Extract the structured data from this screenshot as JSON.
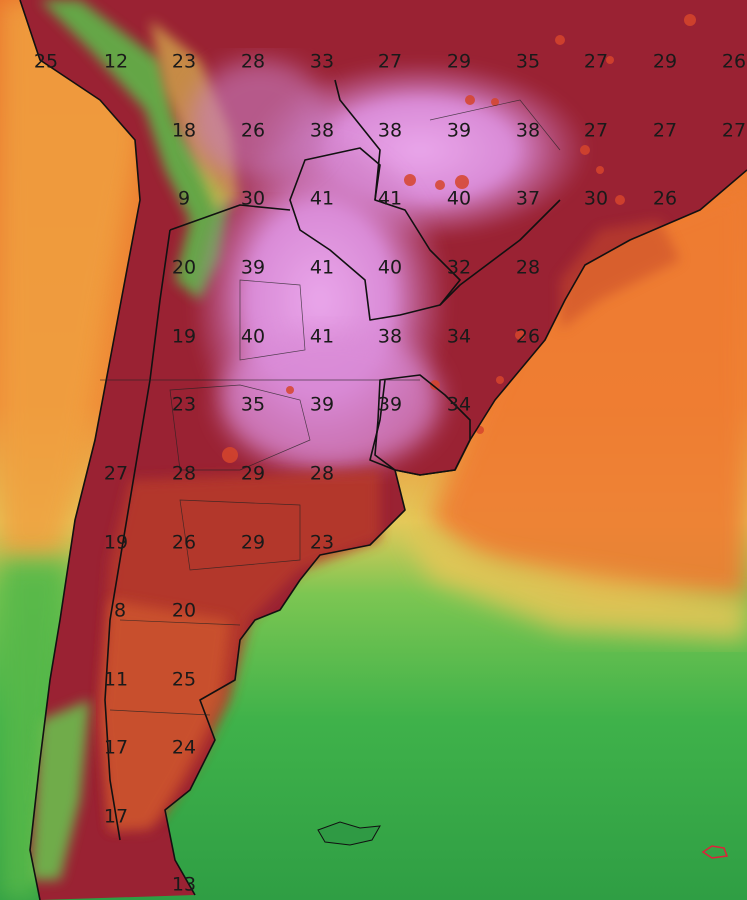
{
  "map": {
    "variable": "temperature",
    "labels": [
      {
        "id": "t01",
        "value": "25"
      },
      {
        "id": "t02",
        "value": "12"
      },
      {
        "id": "t03",
        "value": "23"
      },
      {
        "id": "t04",
        "value": "28"
      },
      {
        "id": "t05",
        "value": "33"
      },
      {
        "id": "t06",
        "value": "27"
      },
      {
        "id": "t07",
        "value": "29"
      },
      {
        "id": "t08",
        "value": "35"
      },
      {
        "id": "t09",
        "value": "27"
      },
      {
        "id": "t10",
        "value": "29"
      },
      {
        "id": "t11",
        "value": "26"
      },
      {
        "id": "t12",
        "value": "18"
      },
      {
        "id": "t13",
        "value": "26"
      },
      {
        "id": "t14",
        "value": "38"
      },
      {
        "id": "t15",
        "value": "38"
      },
      {
        "id": "t16",
        "value": "39"
      },
      {
        "id": "t17",
        "value": "38"
      },
      {
        "id": "t18",
        "value": "27"
      },
      {
        "id": "t19",
        "value": "27"
      },
      {
        "id": "t20",
        "value": "27"
      },
      {
        "id": "t21",
        "value": "9"
      },
      {
        "id": "t22",
        "value": "30"
      },
      {
        "id": "t23",
        "value": "41"
      },
      {
        "id": "t24",
        "value": "41"
      },
      {
        "id": "t25",
        "value": "40"
      },
      {
        "id": "t26",
        "value": "37"
      },
      {
        "id": "t27",
        "value": "30"
      },
      {
        "id": "t28",
        "value": "26"
      },
      {
        "id": "t29",
        "value": "20"
      },
      {
        "id": "t30",
        "value": "39"
      },
      {
        "id": "t31",
        "value": "41"
      },
      {
        "id": "t32",
        "value": "40"
      },
      {
        "id": "t33",
        "value": "32"
      },
      {
        "id": "t34",
        "value": "28"
      },
      {
        "id": "t35",
        "value": "19"
      },
      {
        "id": "t36",
        "value": "40"
      },
      {
        "id": "t37",
        "value": "41"
      },
      {
        "id": "t38",
        "value": "38"
      },
      {
        "id": "t39",
        "value": "34"
      },
      {
        "id": "t40",
        "value": "26"
      },
      {
        "id": "t41",
        "value": "23"
      },
      {
        "id": "t42",
        "value": "35"
      },
      {
        "id": "t43",
        "value": "39"
      },
      {
        "id": "t44",
        "value": "39"
      },
      {
        "id": "t45",
        "value": "34"
      },
      {
        "id": "t46",
        "value": "27"
      },
      {
        "id": "t47",
        "value": "28"
      },
      {
        "id": "t48",
        "value": "29"
      },
      {
        "id": "t49",
        "value": "28"
      },
      {
        "id": "t50",
        "value": "19"
      },
      {
        "id": "t51",
        "value": "26"
      },
      {
        "id": "t52",
        "value": "29"
      },
      {
        "id": "t53",
        "value": "23"
      },
      {
        "id": "t54",
        "value": "8"
      },
      {
        "id": "t55",
        "value": "20"
      },
      {
        "id": "t56",
        "value": "11"
      },
      {
        "id": "t57",
        "value": "25"
      },
      {
        "id": "t58",
        "value": "17"
      },
      {
        "id": "t59",
        "value": "24"
      },
      {
        "id": "t60",
        "value": "17"
      },
      {
        "id": "t61",
        "value": "13"
      }
    ]
  }
}
